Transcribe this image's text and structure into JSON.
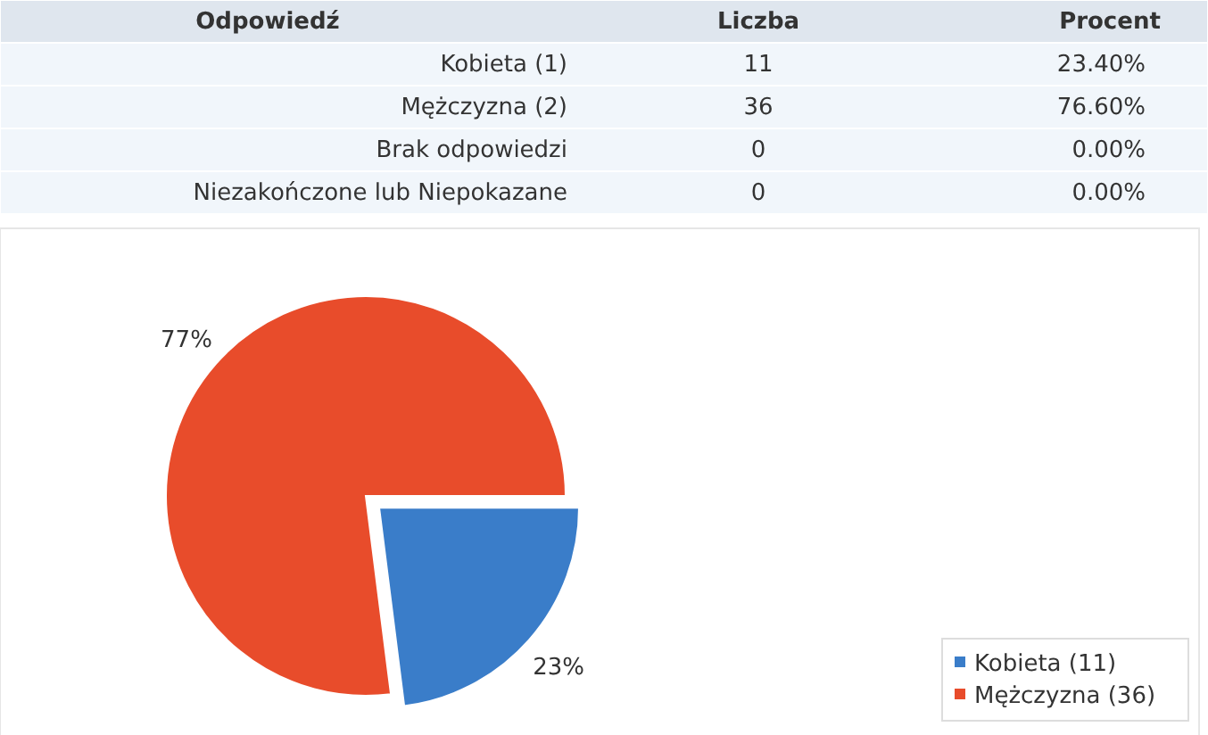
{
  "chart_data": [
    {
      "type": "other",
      "annotations": [
        "Odpowiedź",
        "Liczba",
        "Procent",
        "Kobieta (1)",
        "11",
        "23.40%",
        "Mężczyzna (2)",
        "36",
        "76.60%",
        "Brak odpowiedzi",
        "0",
        "0.00%",
        "Niezakończone lub Niepokazane",
        "0",
        "0.00%"
      ]
    },
    {
      "type": "pie",
      "categories": [
        "Kobieta (11)",
        "Mężczyzna (36)"
      ],
      "values": [
        23,
        77
      ],
      "colors": [
        "#3a7dc9",
        "#e84c2b"
      ],
      "value_labels": [
        "23%",
        "77%"
      ],
      "legend": "bottom right"
    }
  ]
}
